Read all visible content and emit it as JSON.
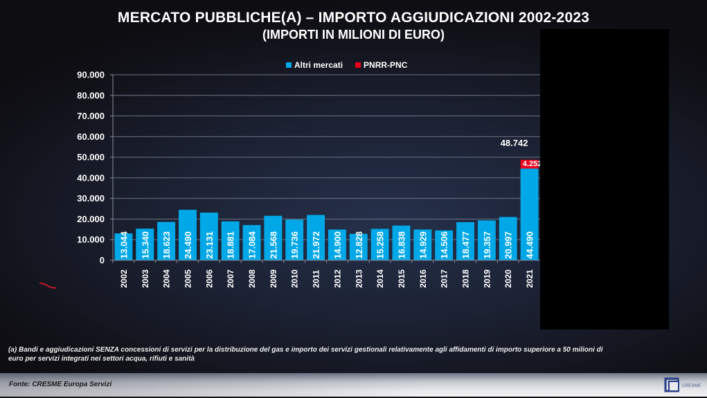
{
  "header": {
    "title": "MERCATO PUBBLICHE(A) – IMPORTO AGGIUDICAZIONI 2002-2023",
    "subtitle": "(IMPORTI IN MILIONI DI EURO)"
  },
  "legend": {
    "items": [
      {
        "label": "Altri mercati",
        "color": "#00a8e8"
      },
      {
        "label": "PNRR-PNC",
        "color": "#e8001c"
      }
    ]
  },
  "chart_data": {
    "type": "bar",
    "stacked": true,
    "title": "MERCATO PUBBLICHE(A) – IMPORTO AGGIUDICAZIONI 2002-2023",
    "subtitle": "(IMPORTI IN MILIONI DI EURO)",
    "xlabel": "",
    "ylabel": "",
    "ylim": [
      0,
      90000
    ],
    "yticks": [
      0,
      10000,
      20000,
      30000,
      40000,
      50000,
      60000,
      70000,
      80000,
      90000
    ],
    "ytick_labels": [
      "0",
      "10.000",
      "20.000",
      "30.000",
      "40.000",
      "50.000",
      "60.000",
      "70.000",
      "80.000",
      "90.000"
    ],
    "grid": true,
    "legend_position": "top-center",
    "categories": [
      "2002",
      "2003",
      "2004",
      "2005",
      "2006",
      "2007",
      "2008",
      "2009",
      "2010",
      "2011",
      "2012",
      "2013",
      "2014",
      "2015",
      "2016",
      "2017",
      "2018",
      "2019",
      "2020",
      "2021"
    ],
    "series": [
      {
        "name": "Altri mercati",
        "color": "#00a8e8",
        "values": [
          13044,
          15340,
          18623,
          24490,
          23131,
          18881,
          17084,
          21568,
          19736,
          21972,
          14900,
          12828,
          15258,
          16838,
          14929,
          14506,
          18477,
          19357,
          20997,
          44490
        ],
        "labels": [
          "13.044",
          "15.340",
          "18.623",
          "24.490",
          "23.131",
          "18.881",
          "17.084",
          "21.568",
          "19.736",
          "21.972",
          "14.900",
          "12.828",
          "15.258",
          "16.838",
          "14.929",
          "14.506",
          "18.477",
          "19.357",
          "20.997",
          "44.490"
        ]
      },
      {
        "name": "PNRR-PNC",
        "color": "#e8001c",
        "values": [
          0,
          0,
          0,
          0,
          0,
          0,
          0,
          0,
          0,
          0,
          0,
          0,
          0,
          0,
          0,
          0,
          0,
          0,
          0,
          4252
        ],
        "labels": [
          "",
          "",
          "",
          "",
          "",
          "",
          "",
          "",
          "",
          "",
          "",
          "",
          "",
          "",
          "",
          "",
          "",
          "",
          "",
          "4.252"
        ]
      }
    ],
    "annotations": [
      {
        "category": "2021",
        "text": "48.742",
        "value": 48742
      }
    ]
  },
  "footnote": {
    "line1": "(a) Bandi e aggiudicazioni SENZA concessioni di servizi per la distribuzione del gas e importo dei servizi gestionali relativamente agli affidamenti di importo superiore a 50 milioni di",
    "line2": "euro per servizi integrati nei settori acqua, rifiuti e sanità"
  },
  "footer": {
    "source": "Fonte: CRESME Europa Servizi",
    "logo_text": "CRESME"
  }
}
